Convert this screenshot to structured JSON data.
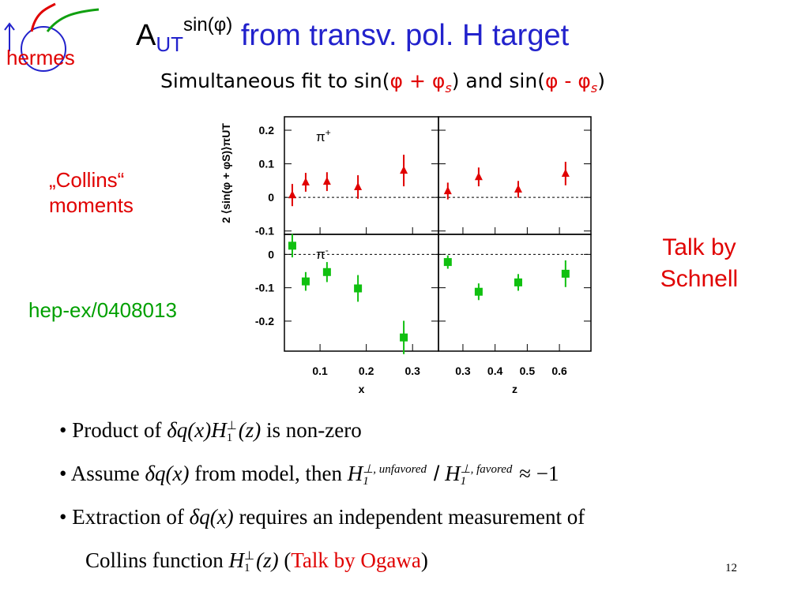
{
  "logo": "hermes",
  "title": {
    "a": "A",
    "sub": "UT",
    "sup": "sin(φ)",
    "text": "from transv. pol. H target"
  },
  "subtitle": [
    "Simultaneous fit to sin(",
    "φ + φ",
    "s",
    ")  and sin(",
    "φ - φ",
    "s",
    ")"
  ],
  "left_note": [
    "„Collins“",
    "moments"
  ],
  "reference": "hep-ex/0408013",
  "talk_note": [
    "Talk by",
    "Schnell"
  ],
  "bullets": [
    [
      "Product of",
      "δq(x)H",
      "⊥",
      "1",
      "(z)",
      "is non-zero"
    ],
    [
      "Assume",
      "δq(x)",
      "from model, then",
      "H",
      "⊥, unfavored",
      "1",
      "/",
      "H",
      "⊥, favored",
      "1",
      "≈ −1"
    ],
    [
      "Extraction of",
      "δq(x)",
      "requires an independent measurement of"
    ],
    [
      "Collins function",
      "H",
      "⊥",
      "1",
      "(z)",
      "(",
      "Talk by Ogawa",
      ")"
    ]
  ],
  "page_number": "12",
  "chart_data": [
    {
      "type": "scatter",
      "label": "π",
      "label_sup": "+",
      "ylabel": "2 ⟨sin(φ + φS)⟩πUT",
      "color": "#e00000",
      "marker": "triangle",
      "x": [
        0.04,
        0.069,
        0.115,
        0.182,
        0.281
      ],
      "values": [
        0.007,
        0.045,
        0.047,
        0.031,
        0.08
      ],
      "errors": [
        0.033,
        0.028,
        0.028,
        0.035,
        0.047
      ],
      "xlim": [
        0.023,
        0.356
      ],
      "xticks": [
        0.1,
        0.2,
        0.3
      ],
      "ylim": [
        -0.11,
        0.24
      ],
      "yticks": [
        -0.1,
        0,
        0.1,
        0.2
      ]
    },
    {
      "type": "scatter",
      "color": "#e00000",
      "marker": "triangle",
      "x": [
        0.253,
        0.349,
        0.472,
        0.619
      ],
      "values": [
        0.019,
        0.061,
        0.024,
        0.071
      ],
      "errors": [
        0.025,
        0.028,
        0.025,
        0.035
      ],
      "xlim": [
        0.224,
        0.698
      ],
      "xticks": [
        0.3,
        0.4,
        0.5,
        0.6
      ],
      "ylim": [
        -0.11,
        0.24
      ],
      "yticks": [
        -0.1,
        0,
        0.1,
        0.2
      ]
    },
    {
      "type": "scatter",
      "label": "π",
      "label_sup": "-",
      "xlabel": "x",
      "color": "#10c010",
      "marker": "square",
      "x": [
        0.04,
        0.069,
        0.115,
        0.182,
        0.281
      ],
      "values": [
        0.026,
        -0.081,
        -0.053,
        -0.102,
        -0.249
      ],
      "errors": [
        0.035,
        0.028,
        0.03,
        0.04,
        0.05
      ],
      "xlim": [
        0.023,
        0.356
      ],
      "xticks": [
        0.1,
        0.2,
        0.3
      ],
      "ylim": [
        -0.29,
        0.06
      ],
      "yticks": [
        -0.2,
        -0.1,
        0
      ]
    },
    {
      "type": "scatter",
      "xlabel": "z",
      "color": "#10c010",
      "marker": "square",
      "x": [
        0.253,
        0.349,
        0.472,
        0.619
      ],
      "values": [
        -0.023,
        -0.112,
        -0.084,
        -0.058
      ],
      "errors": [
        0.02,
        0.025,
        0.025,
        0.04
      ],
      "xlim": [
        0.224,
        0.698
      ],
      "xticks": [
        0.3,
        0.4,
        0.5,
        0.6
      ],
      "ylim": [
        -0.29,
        0.06
      ],
      "yticks": [
        -0.2,
        -0.1,
        0
      ]
    }
  ]
}
